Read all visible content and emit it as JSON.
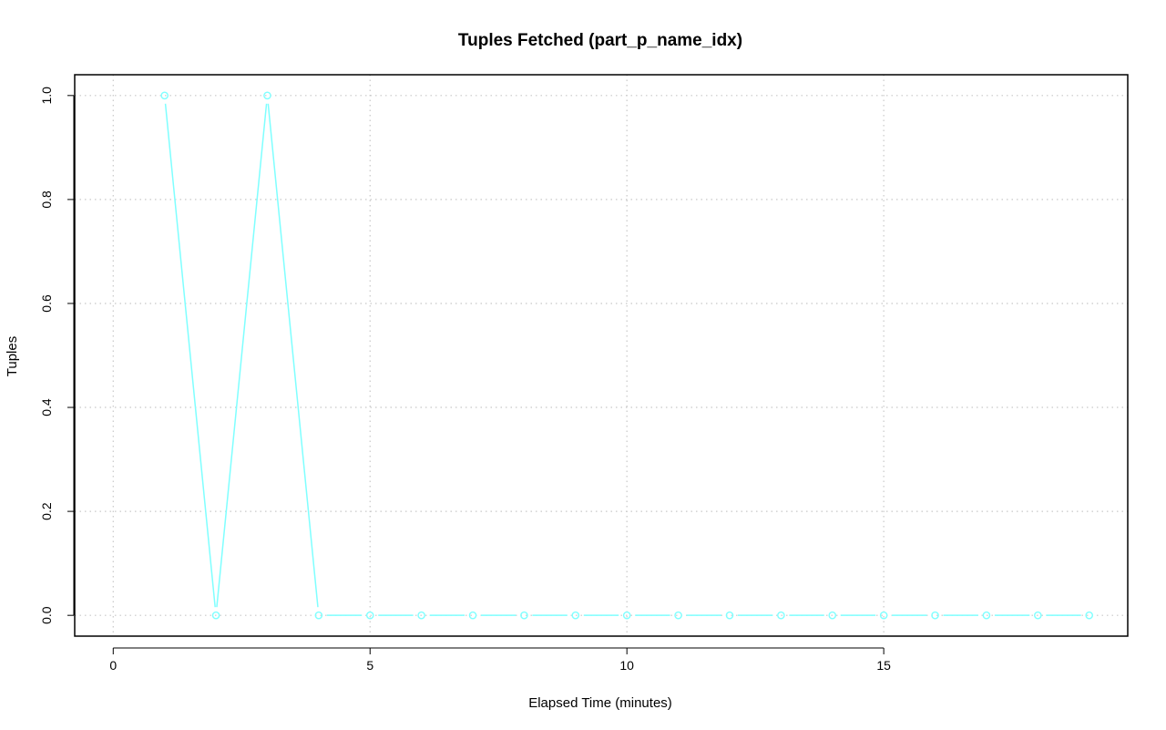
{
  "chart_data": {
    "type": "line",
    "title": "Tuples Fetched (part_p_name_idx)",
    "xlabel": "Elapsed Time (minutes)",
    "ylabel": "Tuples",
    "xlim": [
      -0.75,
      19.75
    ],
    "ylim": [
      -0.04,
      1.04
    ],
    "xticks": [
      0,
      5,
      10,
      15
    ],
    "yticks": [
      0.0,
      0.2,
      0.4,
      0.6,
      0.8,
      1.0
    ],
    "xtick_labels": [
      "0",
      "5",
      "10",
      "15"
    ],
    "ytick_labels": [
      "0.0",
      "0.2",
      "0.4",
      "0.6",
      "0.8",
      "1.0"
    ],
    "grid": true,
    "legend": "none",
    "series": [
      {
        "color": "#7fffff",
        "marker": "circle",
        "x": [
          1,
          2,
          3,
          4,
          5,
          6,
          7,
          8,
          9,
          10,
          11,
          12,
          13,
          14,
          15,
          16,
          17,
          18,
          19
        ],
        "y": [
          1,
          0,
          1,
          0,
          0,
          0,
          0,
          0,
          0,
          0,
          0,
          0,
          0,
          0,
          0,
          0,
          0,
          0,
          0
        ]
      }
    ]
  }
}
